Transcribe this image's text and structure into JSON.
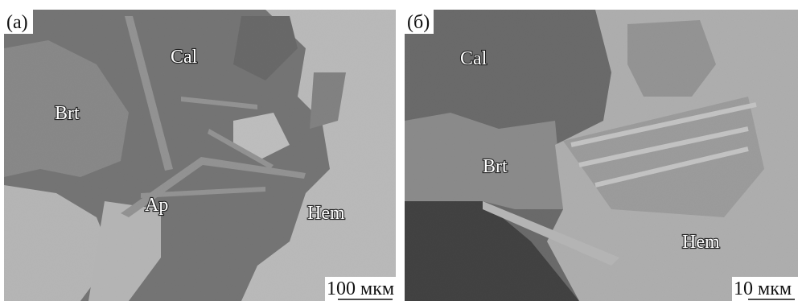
{
  "panels": [
    {
      "label": "(а)",
      "annotations": [
        "Cal",
        "Brt",
        "Ap",
        "Hem"
      ],
      "scale_bar": "100 мкм"
    },
    {
      "label": "(б)",
      "annotations": [
        "Cal",
        "Brt",
        "Hem"
      ],
      "scale_bar": "10 мкм"
    }
  ]
}
